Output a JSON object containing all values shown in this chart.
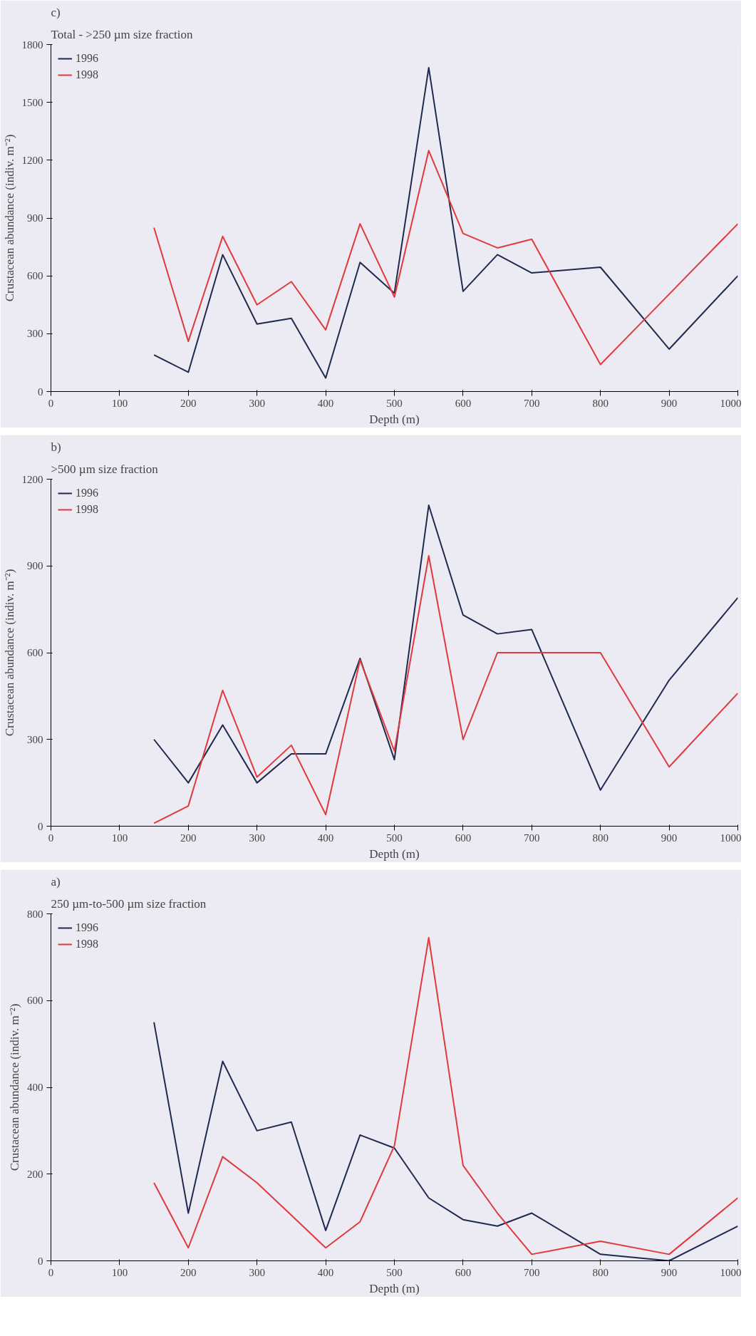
{
  "chart_data": [
    {
      "type": "line",
      "annotations": [
        "c)",
        "Total - >250 µm size fraction"
      ],
      "xlabel": "Depth (m)",
      "ylabel": "Crustacean abundance (indiv. m⁻²)",
      "x": [
        150,
        200,
        250,
        300,
        350,
        400,
        450,
        500,
        550,
        600,
        650,
        700,
        800,
        900,
        1000
      ],
      "xlim": [
        0,
        1000
      ],
      "xticks": [
        0,
        100,
        200,
        300,
        400,
        500,
        600,
        700,
        800,
        900,
        1000
      ],
      "ylim": [
        0,
        1800
      ],
      "yticks": [
        0,
        300,
        600,
        900,
        1200,
        1500,
        1800
      ],
      "grid": false,
      "legend": "top left",
      "series": [
        {
          "name": "1996",
          "color": "#1f2a4f",
          "values": [
            190,
            100,
            710,
            350,
            380,
            70,
            670,
            510,
            1680,
            520,
            710,
            615,
            645,
            220,
            600
          ]
        },
        {
          "name": "1998",
          "color": "#e0393e",
          "values": [
            850,
            260,
            805,
            450,
            570,
            320,
            870,
            490,
            1250,
            820,
            745,
            790,
            140,
            505,
            870
          ]
        }
      ]
    },
    {
      "type": "line",
      "annotations": [
        "b)",
        ">500 µm size fraction"
      ],
      "xlabel": "Depth (m)",
      "ylabel": "Crustacean abundance (indiv. m⁻²)",
      "x": [
        150,
        200,
        250,
        300,
        350,
        400,
        450,
        500,
        550,
        600,
        650,
        700,
        800,
        900,
        1000
      ],
      "xlim": [
        0,
        1000
      ],
      "xticks": [
        0,
        100,
        200,
        300,
        400,
        500,
        600,
        700,
        800,
        900,
        1000
      ],
      "ylim": [
        0,
        1200
      ],
      "yticks": [
        0,
        300,
        600,
        900,
        1200
      ],
      "grid": false,
      "legend": "top left",
      "series": [
        {
          "name": "1996",
          "color": "#1f2a4f",
          "values": [
            300,
            150,
            350,
            150,
            250,
            250,
            580,
            230,
            1110,
            730,
            665,
            680,
            125,
            505,
            790
          ]
        },
        {
          "name": "1998",
          "color": "#e0393e",
          "values": [
            10,
            70,
            470,
            170,
            280,
            40,
            575,
            260,
            935,
            300,
            600,
            600,
            600,
            205,
            460
          ]
        }
      ]
    },
    {
      "type": "line",
      "annotations": [
        "a)",
        "250 µm-to-500 µm size fraction"
      ],
      "xlabel": "Depth (m)",
      "ylabel": "Crustacean abundance (indiv. m⁻²)",
      "x": [
        150,
        200,
        250,
        300,
        350,
        400,
        450,
        500,
        550,
        600,
        650,
        700,
        800,
        900,
        1000
      ],
      "xlim": [
        0,
        1000
      ],
      "xticks": [
        0,
        100,
        200,
        300,
        400,
        500,
        600,
        700,
        800,
        900,
        1000
      ],
      "ylim": [
        0,
        800
      ],
      "yticks": [
        0,
        200,
        400,
        600,
        800
      ],
      "grid": false,
      "legend": "top left",
      "series": [
        {
          "name": "1996",
          "color": "#1f2a4f",
          "values": [
            550,
            110,
            460,
            300,
            320,
            70,
            290,
            260,
            145,
            95,
            80,
            110,
            15,
            0,
            80
          ]
        },
        {
          "name": "1998",
          "color": "#e0393e",
          "values": [
            180,
            30,
            240,
            180,
            105,
            30,
            90,
            265,
            745,
            220,
            110,
            15,
            45,
            15,
            145
          ]
        }
      ]
    }
  ]
}
